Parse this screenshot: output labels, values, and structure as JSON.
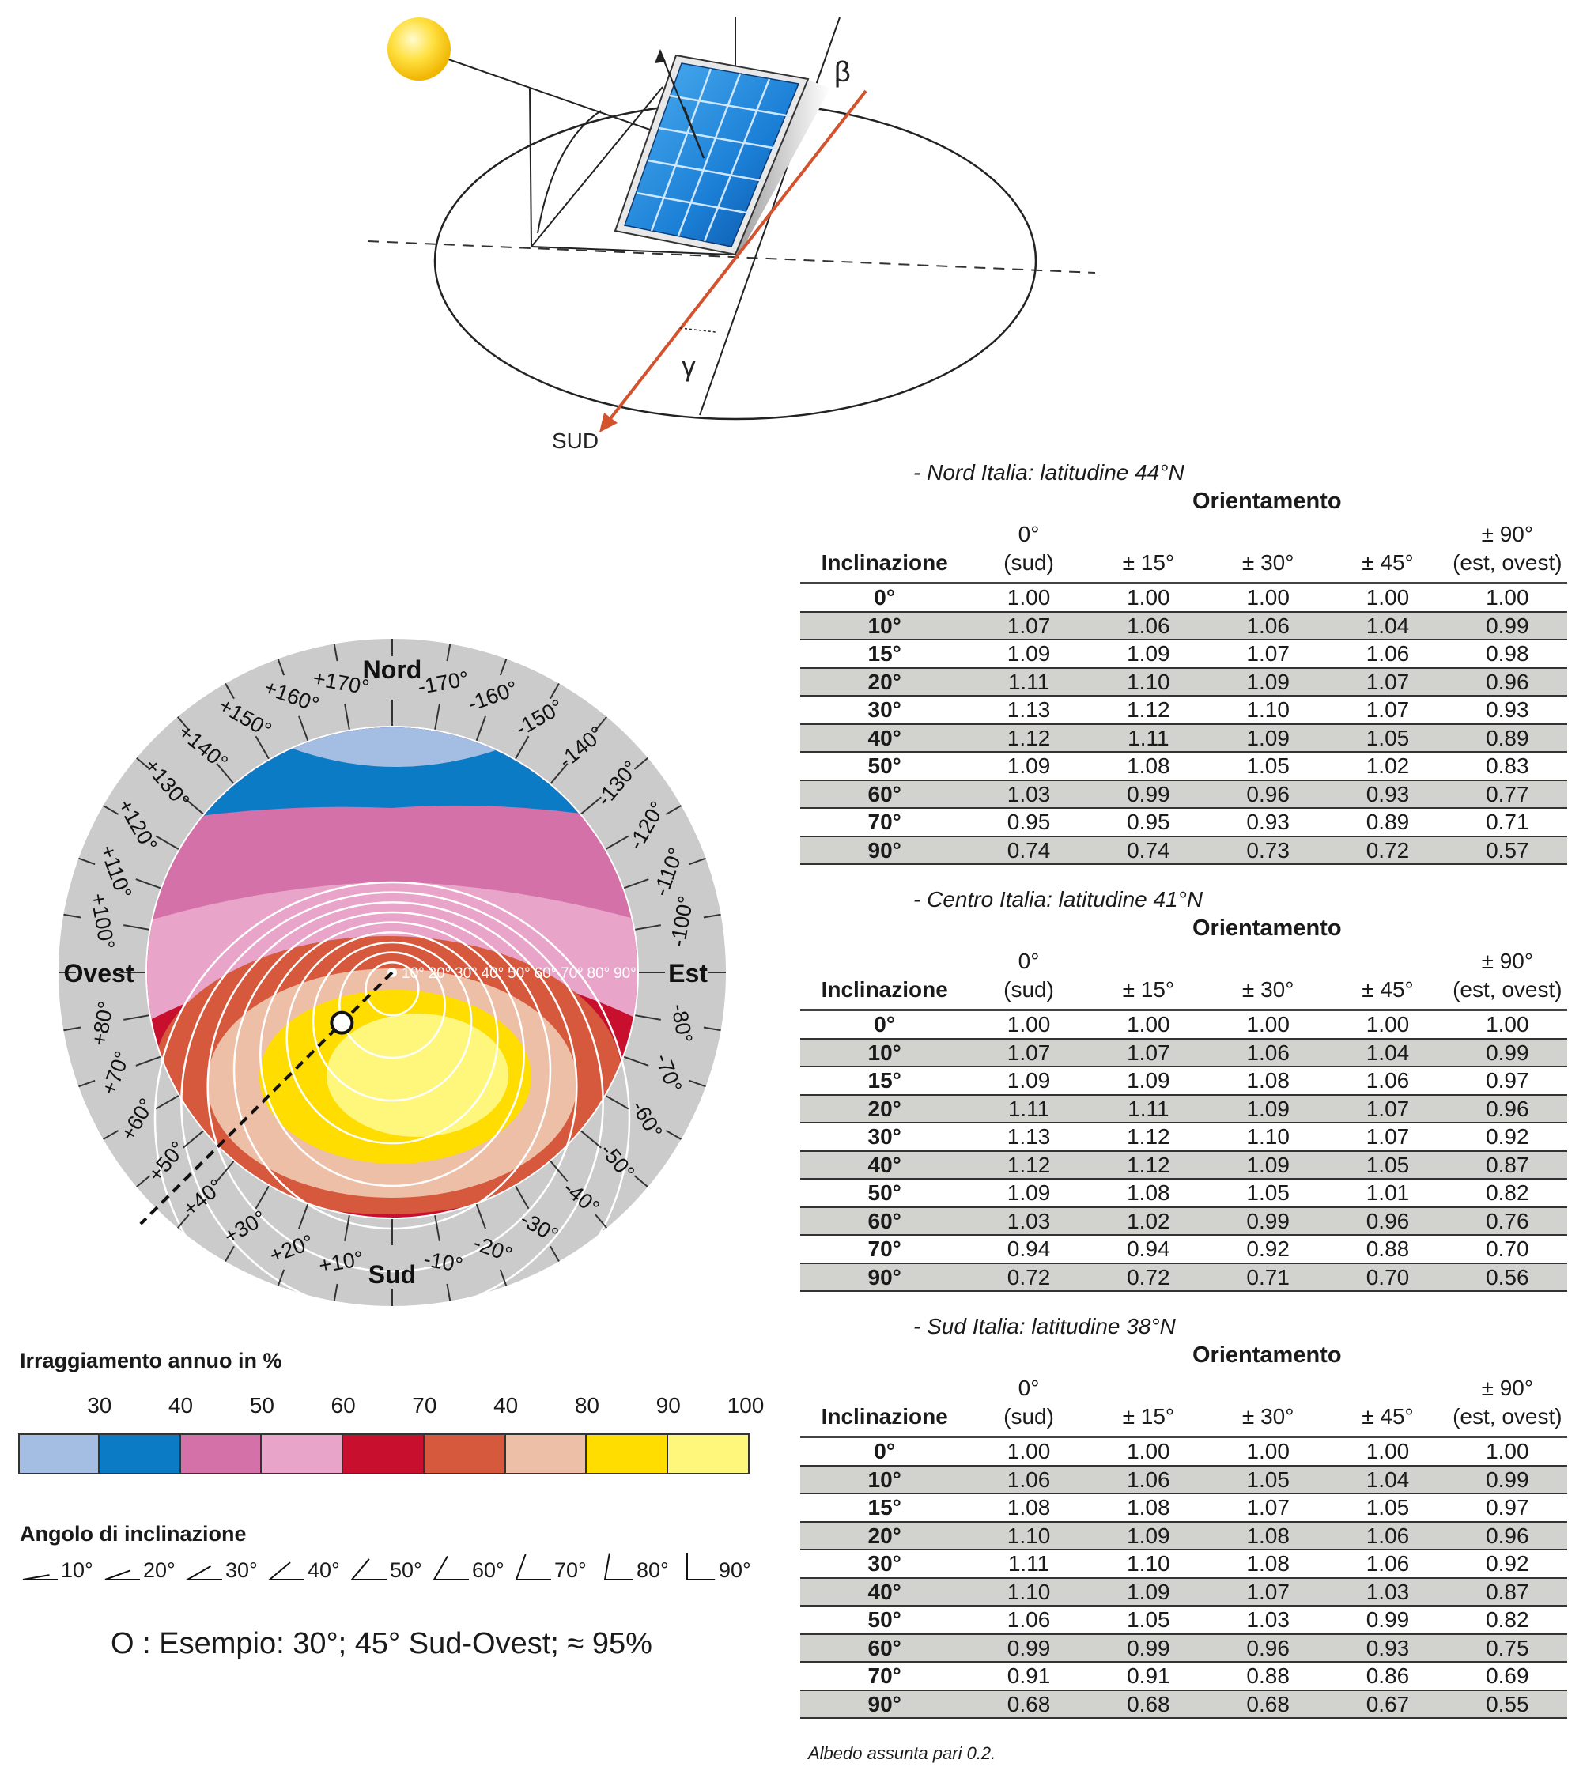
{
  "diagram": {
    "beta_label": "β",
    "gamma_label": "γ",
    "sud_label": "SUD"
  },
  "sun_chart": {
    "north_label": "Nord",
    "south_label": "Sud",
    "west_label": "Ovest",
    "east_label": "Est",
    "azimuth_labels": [
      {
        "angle": 10,
        "text": "-10°"
      },
      {
        "angle": 20,
        "text": "-20°"
      },
      {
        "angle": 30,
        "text": "-30°"
      },
      {
        "angle": 40,
        "text": "-40°"
      },
      {
        "angle": 50,
        "text": "-50°"
      },
      {
        "angle": 60,
        "text": "-60°"
      },
      {
        "angle": 70,
        "text": "-70°"
      },
      {
        "angle": 80,
        "text": "-80°"
      },
      {
        "angle": 100,
        "text": "-100°"
      },
      {
        "angle": 110,
        "text": "-110°"
      },
      {
        "angle": 120,
        "text": "-120°"
      },
      {
        "angle": 130,
        "text": "-130°"
      },
      {
        "angle": 140,
        "text": "-140°"
      },
      {
        "angle": 150,
        "text": "-150°"
      },
      {
        "angle": 160,
        "text": "-160°"
      },
      {
        "angle": 170,
        "text": "-170°"
      },
      {
        "angle": -10,
        "text": "+10°"
      },
      {
        "angle": -20,
        "text": "+20°"
      },
      {
        "angle": -30,
        "text": "+30°"
      },
      {
        "angle": -40,
        "text": "+40°"
      },
      {
        "angle": -50,
        "text": "+50°"
      },
      {
        "angle": -60,
        "text": "+60°"
      },
      {
        "angle": -70,
        "text": "+70°"
      },
      {
        "angle": -80,
        "text": "+80°"
      },
      {
        "angle": -100,
        "text": "+100°"
      },
      {
        "angle": -110,
        "text": "+110°"
      },
      {
        "angle": -120,
        "text": "+120°"
      },
      {
        "angle": -130,
        "text": "+130°"
      },
      {
        "angle": -140,
        "text": "+140°"
      },
      {
        "angle": -150,
        "text": "+150°"
      },
      {
        "angle": -160,
        "text": "+160°"
      },
      {
        "angle": -170,
        "text": "+170°"
      }
    ],
    "ring_labels": [
      "10°",
      "20°",
      "30°",
      "40°",
      "50°",
      "60°",
      "70°",
      "80°",
      "90°"
    ],
    "example_point": {
      "tilt": 30,
      "azimuth": 45
    }
  },
  "legend": {
    "irradiation_title": "Irraggiamento annuo in %",
    "scale_values": [
      "30",
      "40",
      "50",
      "60",
      "70",
      "40",
      "80",
      "90",
      "100"
    ],
    "colors": [
      "#a3bde3",
      "#0b7bc6",
      "#d471a8",
      "#e8a5c9",
      "#c8102e",
      "#d6593d",
      "#eebfa7",
      "#ffdd00",
      "#fff67c"
    ],
    "tilt_title": "Angolo di inclinazione",
    "tilt_angles": [
      "10°",
      "20°",
      "30°",
      "40°",
      "50°",
      "60°",
      "70°",
      "80°",
      "90°"
    ],
    "example_text": "O : Esempio: 30°; 45° Sud-Ovest; ≈ 95%"
  },
  "tables": {
    "orient_label": "Orientamento",
    "incl_label": "Inclinazione",
    "col_headers": [
      {
        "top": "0°",
        "bottom": "(sud)"
      },
      {
        "top": "",
        "bottom": "± 15°"
      },
      {
        "top": "",
        "bottom": "± 30°"
      },
      {
        "top": "",
        "bottom": "± 45°"
      },
      {
        "top": "± 90°",
        "bottom": "(est, ovest)"
      }
    ],
    "items": [
      {
        "title": "- Nord Italia: latitudine 44°N",
        "rows": [
          [
            "0°",
            "1.00",
            "1.00",
            "1.00",
            "1.00",
            "1.00"
          ],
          [
            "10°",
            "1.07",
            "1.06",
            "1.06",
            "1.04",
            "0.99"
          ],
          [
            "15°",
            "1.09",
            "1.09",
            "1.07",
            "1.06",
            "0.98"
          ],
          [
            "20°",
            "1.11",
            "1.10",
            "1.09",
            "1.07",
            "0.96"
          ],
          [
            "30°",
            "1.13",
            "1.12",
            "1.10",
            "1.07",
            "0.93"
          ],
          [
            "40°",
            "1.12",
            "1.11",
            "1.09",
            "1.05",
            "0.89"
          ],
          [
            "50°",
            "1.09",
            "1.08",
            "1.05",
            "1.02",
            "0.83"
          ],
          [
            "60°",
            "1.03",
            "0.99",
            "0.96",
            "0.93",
            "0.77"
          ],
          [
            "70°",
            "0.95",
            "0.95",
            "0.93",
            "0.89",
            "0.71"
          ],
          [
            "90°",
            "0.74",
            "0.74",
            "0.73",
            "0.72",
            "0.57"
          ]
        ]
      },
      {
        "title": "- Centro Italia: latitudine 41°N",
        "rows": [
          [
            "0°",
            "1.00",
            "1.00",
            "1.00",
            "1.00",
            "1.00"
          ],
          [
            "10°",
            "1.07",
            "1.07",
            "1.06",
            "1.04",
            "0.99"
          ],
          [
            "15°",
            "1.09",
            "1.09",
            "1.08",
            "1.06",
            "0.97"
          ],
          [
            "20°",
            "1.11",
            "1.11",
            "1.09",
            "1.07",
            "0.96"
          ],
          [
            "30°",
            "1.13",
            "1.12",
            "1.10",
            "1.07",
            "0.92"
          ],
          [
            "40°",
            "1.12",
            "1.12",
            "1.09",
            "1.05",
            "0.87"
          ],
          [
            "50°",
            "1.09",
            "1.08",
            "1.05",
            "1.01",
            "0.82"
          ],
          [
            "60°",
            "1.03",
            "1.02",
            "0.99",
            "0.96",
            "0.76"
          ],
          [
            "70°",
            "0.94",
            "0.94",
            "0.92",
            "0.88",
            "0.70"
          ],
          [
            "90°",
            "0.72",
            "0.72",
            "0.71",
            "0.70",
            "0.56"
          ]
        ]
      },
      {
        "title": "- Sud Italia: latitudine 38°N",
        "rows": [
          [
            "0°",
            "1.00",
            "1.00",
            "1.00",
            "1.00",
            "1.00"
          ],
          [
            "10°",
            "1.06",
            "1.06",
            "1.05",
            "1.04",
            "0.99"
          ],
          [
            "15°",
            "1.08",
            "1.08",
            "1.07",
            "1.05",
            "0.97"
          ],
          [
            "20°",
            "1.10",
            "1.09",
            "1.08",
            "1.06",
            "0.96"
          ],
          [
            "30°",
            "1.11",
            "1.10",
            "1.08",
            "1.06",
            "0.92"
          ],
          [
            "40°",
            "1.10",
            "1.09",
            "1.07",
            "1.03",
            "0.87"
          ],
          [
            "50°",
            "1.06",
            "1.05",
            "1.03",
            "0.99",
            "0.82"
          ],
          [
            "60°",
            "0.99",
            "0.99",
            "0.96",
            "0.93",
            "0.75"
          ],
          [
            "70°",
            "0.91",
            "0.91",
            "0.88",
            "0.86",
            "0.69"
          ],
          [
            "90°",
            "0.68",
            "0.68",
            "0.68",
            "0.67",
            "0.55"
          ]
        ]
      }
    ],
    "note": "Albedo assunta pari 0.2."
  }
}
